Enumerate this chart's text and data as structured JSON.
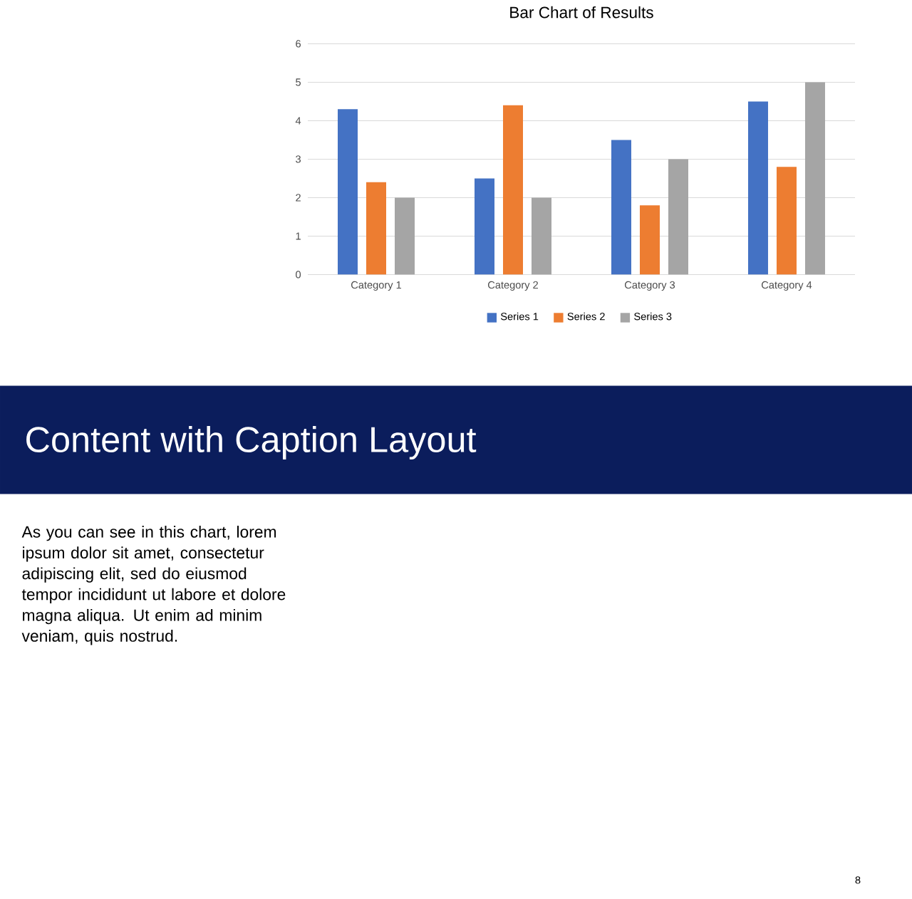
{
  "chart_data": {
    "type": "bar",
    "title": "Bar Chart of Results",
    "categories": [
      "Category 1",
      "Category 2",
      "Category 3",
      "Category 4"
    ],
    "series": [
      {
        "name": "Series 1",
        "color": "#4472c4",
        "values": [
          4.3,
          2.5,
          3.5,
          4.5
        ]
      },
      {
        "name": "Series 2",
        "color": "#ed7d31",
        "values": [
          2.4,
          4.4,
          1.8,
          2.8
        ]
      },
      {
        "name": "Series 3",
        "color": "#a5a5a5",
        "values": [
          2,
          2,
          3,
          5
        ]
      }
    ],
    "ylim": [
      0,
      6
    ],
    "yticks": [
      0,
      1,
      2,
      3,
      4,
      5,
      6
    ],
    "grid": "y",
    "legend": "bottom",
    "annotations": [
      "Content with Caption Layout",
      "As you can see in this chart, lorem ipsum dolor sit amet, consectetur adipiscing elit, sed do eiusmod tempor incididunt ut labore et dolore magna aliqua. Ut enim ad minim veniam, quis nostrud.",
      "8"
    ]
  }
}
